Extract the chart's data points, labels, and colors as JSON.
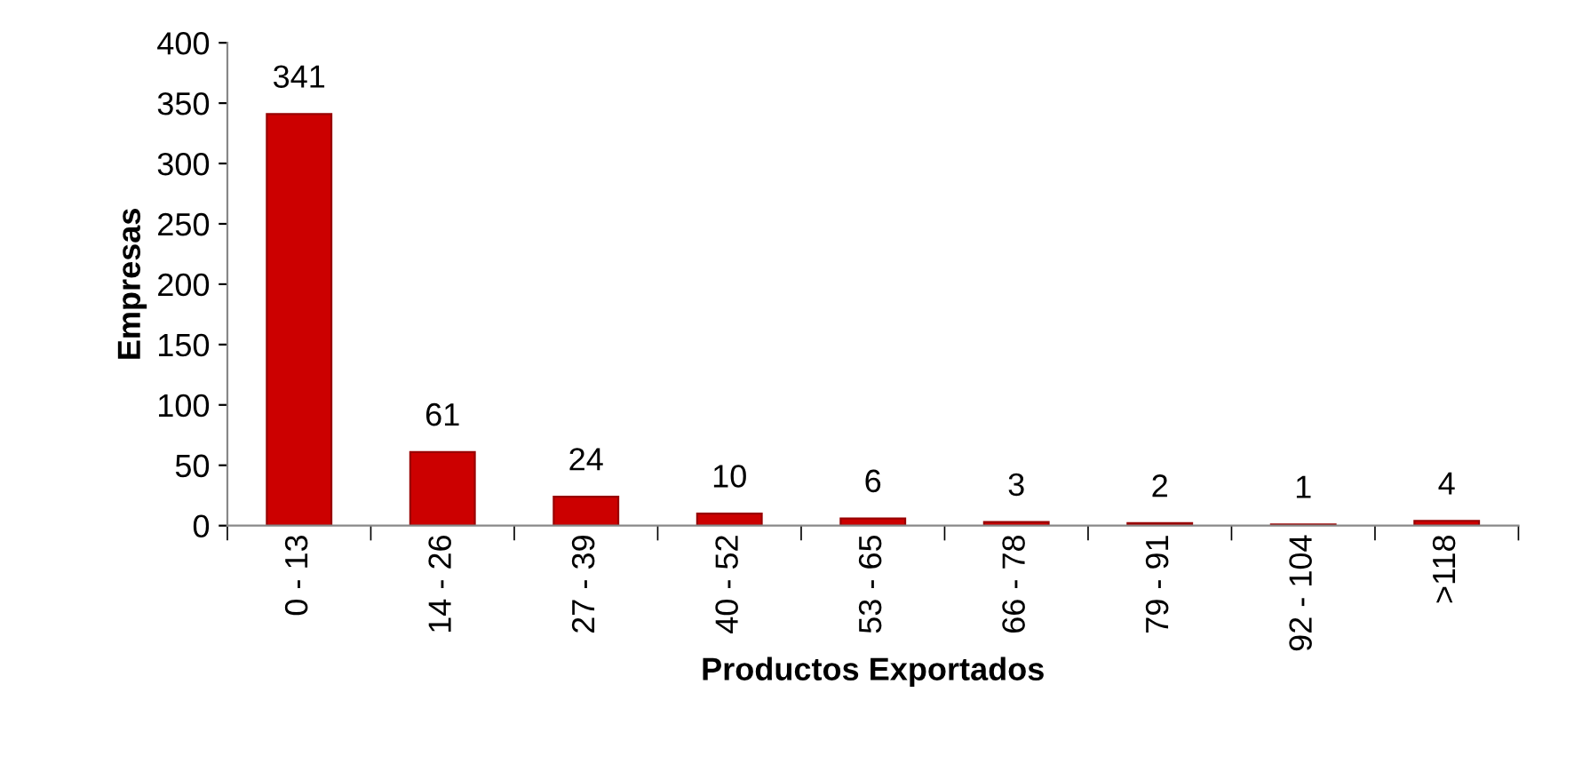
{
  "chart_data": {
    "type": "bar",
    "xlabel": "Productos Exportados",
    "ylabel": "Empresas",
    "categories": [
      "0 - 13",
      "14 - 26",
      "27 - 39",
      "40 - 52",
      "53 - 65",
      "66 - 78",
      "79 - 91",
      "92 - 104",
      ">118"
    ],
    "values": [
      341,
      61,
      24,
      10,
      6,
      3,
      2,
      1,
      4
    ],
    "color": "#cc0000",
    "ylim": [
      0,
      400
    ],
    "yticks": [
      0,
      50,
      100,
      150,
      200,
      250,
      300,
      350,
      400
    ],
    "data_labels": true,
    "grid": false,
    "legend": false
  }
}
